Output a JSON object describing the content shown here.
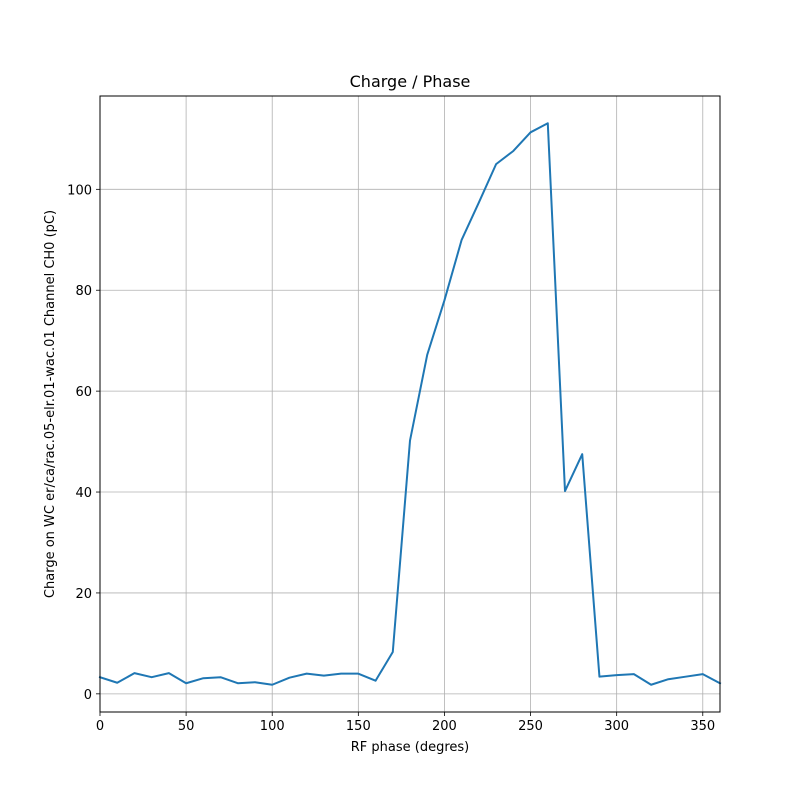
{
  "chart_data": {
    "type": "line",
    "title": "Charge / Phase",
    "xlabel": "RF phase (degres)",
    "ylabel": "Charge on WC er/ca/rac.05-elr.01-wac.01 Channel CH0 (pC)",
    "xlim": [
      0,
      360
    ],
    "ylim": [
      -3.6,
      118.5
    ],
    "xticks": [
      0,
      50,
      100,
      150,
      200,
      250,
      300,
      350
    ],
    "yticks": [
      0,
      20,
      40,
      60,
      80,
      100
    ],
    "grid": true,
    "series": [
      {
        "color": "#1f77b4",
        "x": [
          0,
          10,
          20,
          30,
          40,
          50,
          60,
          70,
          80,
          90,
          100,
          110,
          120,
          130,
          140,
          150,
          160,
          170,
          180,
          190,
          200,
          210,
          220,
          230,
          240,
          250,
          260,
          270,
          280,
          290,
          300,
          310,
          320,
          330,
          340,
          350,
          360
        ],
        "y": [
          3.3,
          2.2,
          4.1,
          3.3,
          4.1,
          2.1,
          3.1,
          3.3,
          2.1,
          2.3,
          1.8,
          3.2,
          4.0,
          3.6,
          4.0,
          4.0,
          2.6,
          8.3,
          50.2,
          67.2,
          78.0,
          90.0,
          97.4,
          105.0,
          107.6,
          111.3,
          113.1,
          40.2,
          47.5,
          3.4,
          3.7,
          3.9,
          1.8,
          2.9,
          3.4,
          3.9,
          2.1
        ]
      }
    ]
  }
}
